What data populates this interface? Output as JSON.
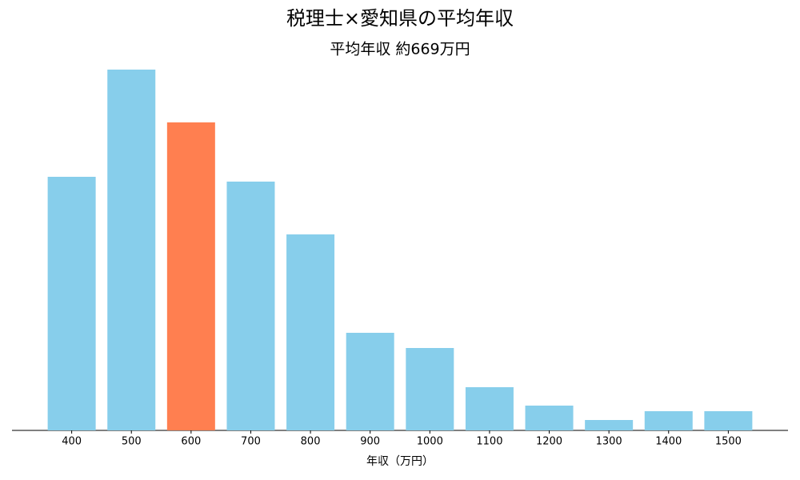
{
  "chart_data": {
    "type": "bar",
    "title": "税理士×愛知県の平均年収",
    "subtitle": "平均年収 約669万円",
    "x_label": "年収（万円）",
    "categories": [
      "400",
      "500",
      "600",
      "700",
      "800",
      "900",
      "1000",
      "1100",
      "1200",
      "1300",
      "1400",
      "1500"
    ],
    "values": [
      317,
      451,
      385,
      311,
      245,
      122,
      103,
      54,
      31,
      13,
      24,
      24
    ],
    "colors": [
      "#87ceeb",
      "#87ceeb",
      "#ff7f50",
      "#87ceeb",
      "#87ceeb",
      "#87ceeb",
      "#87ceeb",
      "#87ceeb",
      "#87ceeb",
      "#87ceeb",
      "#87ceeb",
      "#87ceeb"
    ]
  }
}
